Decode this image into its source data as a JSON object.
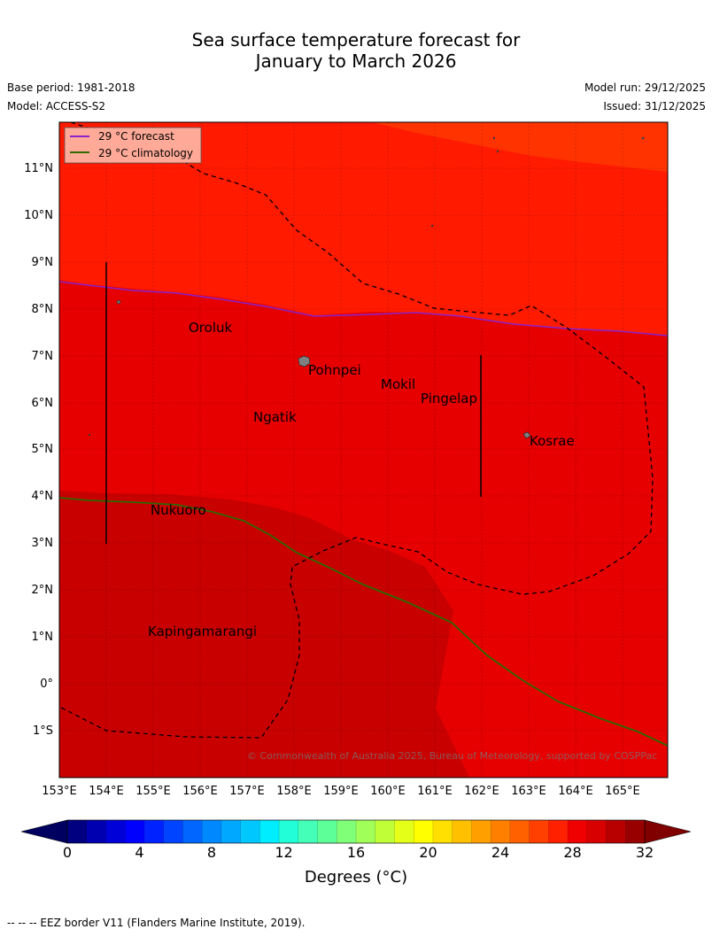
{
  "header": {
    "title_line1": "Sea surface temperature forecast for",
    "title_line2": "January to March 2026",
    "base_period": "Base period: 1981-2018",
    "model": "Model: ACCESS-S2",
    "model_run": "Model run: 29/12/2025",
    "issued": "Issued: 31/12/2025"
  },
  "map": {
    "lon_labels": [
      "153°E",
      "154°E",
      "155°E",
      "156°E",
      "157°E",
      "158°E",
      "159°E",
      "160°E",
      "161°E",
      "162°E",
      "163°E",
      "164°E",
      "165°E"
    ],
    "lat_labels": [
      "11°N",
      "10°N",
      "9°N",
      "8°N",
      "7°N",
      "6°N",
      "5°N",
      "4°N",
      "3°N",
      "2°N",
      "1°N",
      "0°",
      "1°S"
    ],
    "places": [
      "Oroluk",
      "Pohnpei",
      "Mokil",
      "Pingelap",
      "Ngatik",
      "Kosrae",
      "Nukuoro",
      "Kapingamarangi"
    ],
    "copyright": "© Commonwealth of Australia 2025, Bureau of Meteorology, supported by COSPPac",
    "legend": {
      "forecast_label": "29 °C  forecast",
      "climatology_label": "29 °C  climatology"
    },
    "colors": {
      "above_29": "#ff1a00",
      "from_28": "#ff3300",
      "warm": "#e60000",
      "warmest": "#c80000",
      "forecast_line": "#8b22cc",
      "climatology_line": "#2d6a00"
    }
  },
  "colorbar": {
    "ticks": [
      "0",
      "4",
      "8",
      "12",
      "16",
      "20",
      "24",
      "28",
      "32"
    ],
    "label": "Degrees (°C)",
    "colors": [
      "#000080",
      "#0000b0",
      "#0000d8",
      "#0000ff",
      "#0022ff",
      "#0044ff",
      "#0066ff",
      "#0088ff",
      "#00a8ff",
      "#00c8ff",
      "#00ecff",
      "#22ffd8",
      "#44ffb8",
      "#5cff98",
      "#80ff78",
      "#a0ff58",
      "#c0ff38",
      "#e4ff18",
      "#ffff00",
      "#ffe000",
      "#ffc000",
      "#ffa000",
      "#ff8000",
      "#ff6000",
      "#ff4000",
      "#ff2000",
      "#f00000",
      "#d80000",
      "#b80000",
      "#980000"
    ]
  },
  "footer": {
    "eez_note": "--  --  -- EEZ border V11 (Flanders Marine Institute, 2019)."
  }
}
